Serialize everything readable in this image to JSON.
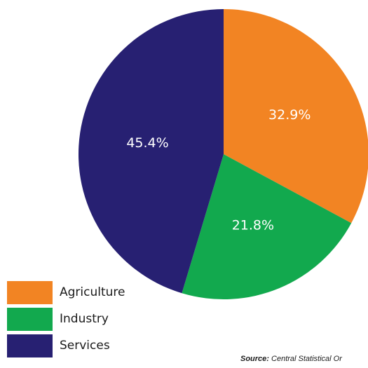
{
  "chart_data": {
    "type": "pie",
    "categories": [
      "Agriculture",
      "Industry",
      "Services"
    ],
    "values": [
      32.9,
      21.8,
      45.4
    ],
    "value_labels": [
      "32.9%",
      "21.8%",
      "45.4%"
    ],
    "colors": [
      "#f28423",
      "#12a94e",
      "#272072"
    ],
    "start_angle_deg": 0,
    "direction": "clockwise",
    "legend_position": "bottom-left"
  },
  "legend": {
    "items": [
      {
        "label": "Agriculture",
        "color": "#f28423"
      },
      {
        "label": "Industry",
        "color": "#12a94e"
      },
      {
        "label": "Services",
        "color": "#272072"
      }
    ]
  },
  "source": {
    "prefix": "Source:",
    "text": " Central Statistical Or"
  }
}
